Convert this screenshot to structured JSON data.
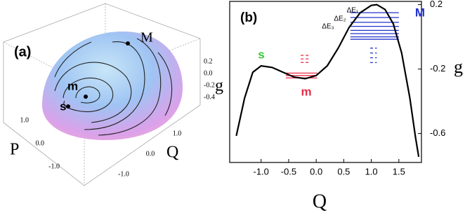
{
  "chart_data": [
    {
      "type": "surface3d",
      "title": "(a)",
      "annotations": [
        "M",
        "m",
        "s"
      ],
      "xlabel": "P",
      "ylabel": "Q",
      "zlabel": "g",
      "xticks": [
        {
          "value": 1,
          "label": "1.0"
        },
        {
          "value": 0,
          "label": "0.0"
        },
        {
          "value": -1,
          "label": "-1.0"
        }
      ],
      "yticks": [
        {
          "value": 1,
          "label": "1.0"
        },
        {
          "value": 0,
          "label": "0.0"
        },
        {
          "value": -1,
          "label": "-1.0"
        }
      ],
      "zticks": [
        0.2,
        {
          "value": 0,
          "label": "0.0"
        },
        -0.2,
        -0.4
      ]
    },
    {
      "type": "line",
      "title": "(b)",
      "xlabel": "Q",
      "ylabel": "g",
      "color": "#000000",
      "x": [
        -1.45,
        -1.3,
        -1.15,
        -1.0,
        -0.8,
        -0.6,
        -0.4,
        -0.2,
        0.0,
        0.2,
        0.4,
        0.6,
        0.8,
        1.0,
        1.1,
        1.25,
        1.4,
        1.55,
        1.7,
        1.8,
        1.86
      ],
      "values": [
        -0.615,
        -0.38,
        -0.22,
        -0.18,
        -0.19,
        -0.22,
        -0.25,
        -0.26,
        -0.24,
        -0.18,
        -0.07,
        0.06,
        0.15,
        0.195,
        0.2,
        0.17,
        0.08,
        -0.1,
        -0.38,
        -0.62,
        -0.745
      ],
      "xlim": [
        -1.57,
        1.91
      ],
      "ylim": [
        -0.78,
        0.22
      ],
      "xticks": [
        {
          "value": -1,
          "label": "-1.0"
        },
        -0.5,
        {
          "value": 0,
          "label": "0.0"
        },
        0.5,
        {
          "value": 1,
          "label": "1.0"
        },
        1.5
      ],
      "yticks": [
        0.2,
        -0.2,
        -0.6
      ],
      "levels": [
        {
          "color": "#e8304a",
          "dashed": false,
          "xmin": -0.55,
          "xmax": 0.02,
          "values": [
            -0.225,
            -0.24,
            -0.255
          ]
        },
        {
          "color": "#e8304a",
          "dashed": true,
          "xmin": -0.28,
          "xmax": -0.12,
          "values": [
            -0.115,
            -0.137,
            -0.159
          ]
        },
        {
          "color": "#2233cc",
          "dashed": false,
          "xmin": 0.62,
          "xmax": 1.5,
          "values": [
            0.15,
            0.12,
            0.09,
            0.065,
            0.04,
            0.02,
            0.0,
            -0.015
          ]
        },
        {
          "color": "#2233cc",
          "dashed": true,
          "xmin": 0.98,
          "xmax": 1.1,
          "values": [
            -0.07,
            -0.1,
            -0.13,
            -0.16
          ]
        }
      ],
      "annotations": [
        {
          "text": "s",
          "color": "#33cc33"
        },
        {
          "text": "m",
          "color": "#e8304a"
        },
        {
          "text": "M",
          "color": "#2233cc"
        },
        {
          "text": "ΔE₁",
          "color": "#000000"
        },
        {
          "text": "ΔE₂",
          "color": "#000000"
        },
        {
          "text": "ΔE₃",
          "color": "#000000"
        }
      ]
    }
  ]
}
